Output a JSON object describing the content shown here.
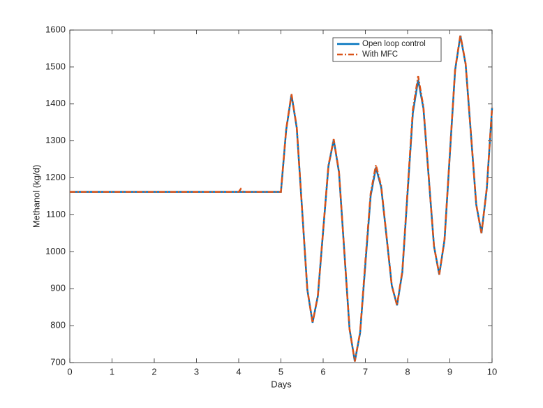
{
  "chart_data": {
    "type": "line",
    "xlabel": "Days",
    "ylabel": "Methanol (kg/d)",
    "x": [
      0,
      4,
      4.05,
      4.1,
      5,
      5.125,
      5.25,
      5.375,
      5.5,
      5.625,
      5.75,
      5.875,
      6,
      6.125,
      6.25,
      6.375,
      6.5,
      6.625,
      6.75,
      6.875,
      7,
      7.125,
      7.25,
      7.375,
      7.5,
      7.625,
      7.75,
      7.875,
      8,
      8.125,
      8.25,
      8.375,
      8.5,
      8.625,
      8.75,
      8.875,
      9,
      9.125,
      9.25,
      9.375,
      9.5,
      9.625,
      9.75,
      9.875,
      10
    ],
    "series": [
      {
        "name": "Open loop control",
        "color": "#0072bd",
        "dash": "solid",
        "values": [
          1162,
          1162,
          1162,
          1162,
          1162,
          1330,
          1425,
          1335,
          1117,
          898,
          808,
          880,
          1056,
          1231,
          1303,
          1215,
          1003,
          791,
          703,
          780,
          966,
          1151,
          1228,
          1174,
          1042,
          909,
          855,
          944,
          1160,
          1376,
          1465,
          1388,
          1202,
          1015,
          938,
          1032,
          1262,
          1491,
          1585,
          1507,
          1318,
          1128,
          1050,
          1170,
          1388
        ]
      },
      {
        "name": "With MFC",
        "color": "#d95319",
        "dash": "dashdot",
        "values": [
          1162,
          1162,
          1170,
          1162,
          1162,
          1332,
          1427,
          1337,
          1117,
          898,
          808,
          882,
          1058,
          1233,
          1305,
          1217,
          1003,
          791,
          703,
          782,
          975,
          1158,
          1235,
          1178,
          1044,
          909,
          855,
          948,
          1168,
          1385,
          1475,
          1392,
          1204,
          1015,
          938,
          1034,
          1264,
          1493,
          1587,
          1509,
          1320,
          1128,
          1050,
          1172,
          1390
        ]
      }
    ],
    "xlim": [
      0,
      10
    ],
    "xticks": [
      0,
      1,
      2,
      3,
      4,
      5,
      6,
      7,
      8,
      9,
      10
    ],
    "ylim": [
      700,
      1600
    ],
    "yticks": [
      700,
      800,
      900,
      1000,
      1100,
      1200,
      1300,
      1400,
      1500,
      1600
    ],
    "legend": "upper right",
    "grid": false
  }
}
